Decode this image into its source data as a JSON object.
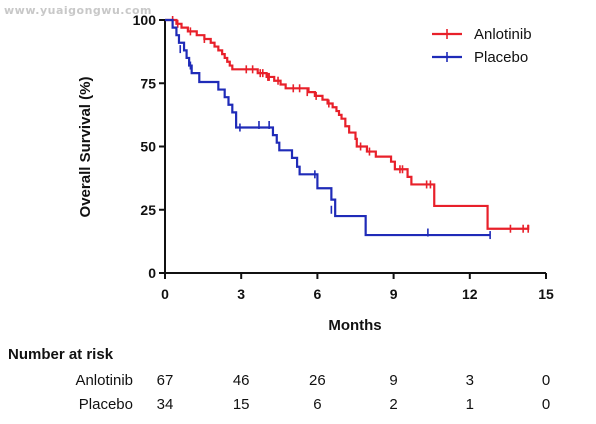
{
  "watermark": "www.yuaigongwu.com",
  "chart_data": {
    "type": "line",
    "subtype": "kaplan-meier step",
    "xlabel": "Months",
    "ylabel": "Overall Survival (%)",
    "xlim": [
      0,
      15
    ],
    "ylim": [
      0,
      100
    ],
    "xticks": [
      0,
      3,
      6,
      9,
      12,
      15
    ],
    "yticks": [
      0,
      25,
      50,
      75,
      100
    ],
    "grid": false,
    "legend_position": "top-right",
    "series": [
      {
        "name": "Anlotinib",
        "color": "#e8202a",
        "steps": [
          [
            0,
            100
          ],
          [
            0.45,
            98.5
          ],
          [
            0.65,
            97
          ],
          [
            0.9,
            95.5
          ],
          [
            1.25,
            94
          ],
          [
            1.55,
            92.5
          ],
          [
            1.8,
            91
          ],
          [
            1.95,
            89.5
          ],
          [
            2.1,
            88
          ],
          [
            2.25,
            86.5
          ],
          [
            2.35,
            85
          ],
          [
            2.45,
            83.5
          ],
          [
            2.55,
            82
          ],
          [
            2.65,
            80.5
          ],
          [
            3.65,
            79
          ],
          [
            4.0,
            77.5
          ],
          [
            4.3,
            76
          ],
          [
            4.55,
            74.5
          ],
          [
            4.75,
            73
          ],
          [
            5.65,
            71.5
          ],
          [
            5.9,
            70
          ],
          [
            6.2,
            68.5
          ],
          [
            6.4,
            67
          ],
          [
            6.6,
            65.5
          ],
          [
            6.75,
            64
          ],
          [
            6.85,
            62.5
          ],
          [
            6.95,
            61
          ],
          [
            7.1,
            58
          ],
          [
            7.25,
            55.5
          ],
          [
            7.5,
            53
          ],
          [
            7.55,
            50
          ],
          [
            7.95,
            48
          ],
          [
            8.3,
            46
          ],
          [
            8.9,
            44
          ],
          [
            9.05,
            41
          ],
          [
            9.55,
            38
          ],
          [
            9.7,
            35
          ],
          [
            10.6,
            26.5
          ],
          [
            12.7,
            17.5
          ],
          [
            13.1,
            17.5
          ],
          [
            14.3,
            19
          ]
        ],
        "censored": [
          [
            0.3,
            100
          ],
          [
            0.5,
            98.5
          ],
          [
            1.0,
            95.5
          ],
          [
            1.55,
            92.5
          ],
          [
            3.2,
            80.5
          ],
          [
            3.45,
            80.5
          ],
          [
            3.75,
            79
          ],
          [
            3.85,
            79
          ],
          [
            4.05,
            77.5
          ],
          [
            4.1,
            77.5
          ],
          [
            4.45,
            76
          ],
          [
            5.05,
            73
          ],
          [
            5.3,
            73
          ],
          [
            5.6,
            71.5
          ],
          [
            5.95,
            70
          ],
          [
            6.45,
            67
          ],
          [
            7.7,
            50
          ],
          [
            8.05,
            48
          ],
          [
            9.25,
            41
          ],
          [
            9.35,
            41
          ],
          [
            10.3,
            35
          ],
          [
            10.45,
            35
          ],
          [
            13.6,
            17.5
          ],
          [
            14.1,
            17.5
          ],
          [
            14.3,
            17.5
          ]
        ]
      },
      {
        "name": "Placebo",
        "color": "#1f2bb8",
        "steps": [
          [
            0,
            100
          ],
          [
            0.3,
            97
          ],
          [
            0.45,
            94
          ],
          [
            0.55,
            91
          ],
          [
            0.75,
            88
          ],
          [
            0.85,
            85
          ],
          [
            0.95,
            82
          ],
          [
            1.05,
            79
          ],
          [
            1.35,
            75.5
          ],
          [
            2.1,
            72.5
          ],
          [
            2.35,
            69.5
          ],
          [
            2.5,
            66.5
          ],
          [
            2.65,
            63.5
          ],
          [
            2.8,
            57.5
          ],
          [
            4.25,
            54.5
          ],
          [
            4.4,
            51.5
          ],
          [
            4.5,
            48.5
          ],
          [
            5.0,
            45.5
          ],
          [
            5.2,
            42
          ],
          [
            5.3,
            39
          ],
          [
            6.0,
            33.5
          ],
          [
            6.55,
            29
          ],
          [
            6.7,
            22.5
          ],
          [
            7.9,
            15
          ],
          [
            12.8,
            15
          ]
        ],
        "censored": [
          [
            0.6,
            88.5
          ],
          [
            1.0,
            82
          ],
          [
            2.95,
            57.5
          ],
          [
            3.7,
            58.5
          ],
          [
            4.1,
            58.5
          ],
          [
            5.9,
            39
          ],
          [
            6.55,
            25
          ],
          [
            7.9,
            18
          ],
          [
            10.35,
            16
          ],
          [
            12.8,
            15
          ]
        ]
      }
    ],
    "risk_table": {
      "title": "Number at risk",
      "times": [
        0,
        3,
        6,
        9,
        12,
        15
      ],
      "rows": [
        {
          "group": "Anlotinib",
          "counts": [
            67,
            46,
            26,
            9,
            3,
            0
          ]
        },
        {
          "group": "Placebo",
          "counts": [
            34,
            15,
            6,
            2,
            1,
            0
          ]
        }
      ]
    }
  }
}
